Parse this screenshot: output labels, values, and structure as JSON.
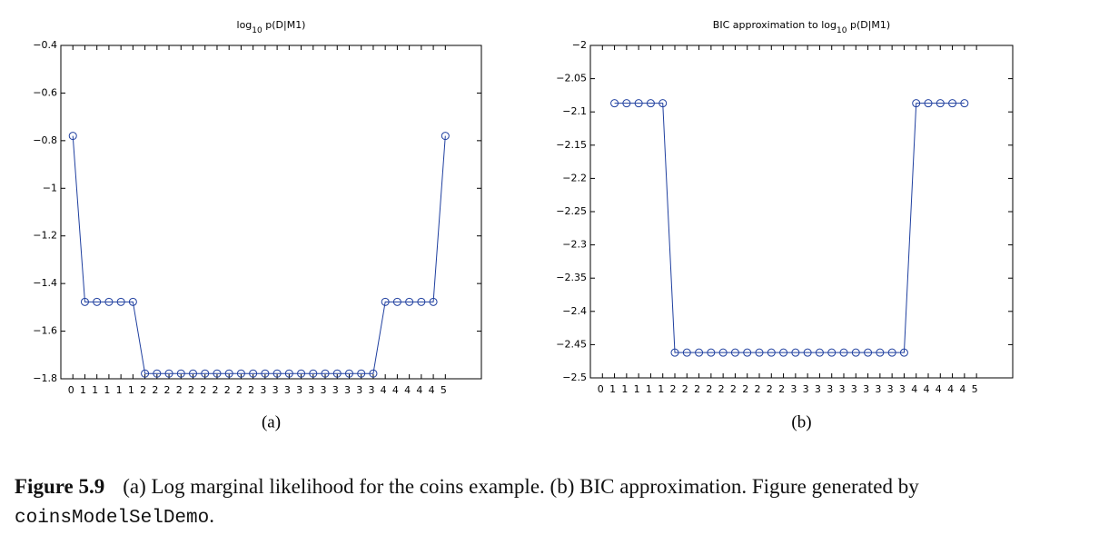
{
  "chart_data": [
    {
      "type": "line",
      "title_parts": [
        "log",
        "10",
        " p(D|M1)"
      ],
      "panel_label": "(a)",
      "categories": [
        "0",
        "1",
        "1",
        "1",
        "1",
        "1",
        "2",
        "2",
        "2",
        "2",
        "2",
        "2",
        "2",
        "2",
        "2",
        "2",
        "3",
        "3",
        "3",
        "3",
        "3",
        "3",
        "3",
        "3",
        "3",
        "3",
        "4",
        "4",
        "4",
        "4",
        "4",
        "5"
      ],
      "values": [
        -0.78,
        -1.477,
        -1.477,
        -1.477,
        -1.477,
        -1.477,
        -1.778,
        -1.778,
        -1.778,
        -1.778,
        -1.778,
        -1.778,
        -1.778,
        -1.778,
        -1.778,
        -1.778,
        -1.778,
        -1.778,
        -1.778,
        -1.778,
        -1.778,
        -1.778,
        -1.778,
        -1.778,
        -1.778,
        -1.778,
        -1.477,
        -1.477,
        -1.477,
        -1.477,
        -1.477,
        -0.78
      ],
      "color": "#1f3f9f",
      "ylim": [
        -1.8,
        -0.4
      ],
      "yticks": [
        {
          "value": -1.8,
          "label": "−1.8"
        },
        {
          "value": -1.6,
          "label": "−1.6"
        },
        {
          "value": -1.4,
          "label": "−1.4"
        },
        {
          "value": -1.2,
          "label": "−1.2"
        },
        {
          "value": -1,
          "label": "−1"
        },
        {
          "value": -0.8,
          "label": "−0.8"
        },
        {
          "value": -0.6,
          "label": "−0.6"
        },
        {
          "value": -0.4,
          "label": "−0.4"
        }
      ],
      "grid": false
    },
    {
      "type": "line",
      "title_parts": [
        "BIC approximation to log",
        "10",
        " p(D|M1)"
      ],
      "panel_label": "(b)",
      "categories": [
        "0",
        "1",
        "1",
        "1",
        "1",
        "1",
        "2",
        "2",
        "2",
        "2",
        "2",
        "2",
        "2",
        "2",
        "2",
        "2",
        "3",
        "3",
        "3",
        "3",
        "3",
        "3",
        "3",
        "3",
        "3",
        "3",
        "4",
        "4",
        "4",
        "4",
        "4",
        "5"
      ],
      "values": [
        null,
        -2.087,
        -2.087,
        -2.087,
        -2.087,
        -2.087,
        -2.462,
        -2.462,
        -2.462,
        -2.462,
        -2.462,
        -2.462,
        -2.462,
        -2.462,
        -2.462,
        -2.462,
        -2.462,
        -2.462,
        -2.462,
        -2.462,
        -2.462,
        -2.462,
        -2.462,
        -2.462,
        -2.462,
        -2.462,
        -2.087,
        -2.087,
        -2.087,
        -2.087,
        -2.087,
        null
      ],
      "color": "#1f3f9f",
      "ylim": [
        -2.5,
        -2
      ],
      "yticks": [
        {
          "value": -2.5,
          "label": "−2.5"
        },
        {
          "value": -2.45,
          "label": "−2.45"
        },
        {
          "value": -2.4,
          "label": "−2.4"
        },
        {
          "value": -2.35,
          "label": "−2.35"
        },
        {
          "value": -2.3,
          "label": "−2.3"
        },
        {
          "value": -2.25,
          "label": "−2.25"
        },
        {
          "value": -2.2,
          "label": "−2.2"
        },
        {
          "value": -2.15,
          "label": "−2.15"
        },
        {
          "value": -2.1,
          "label": "−2.1"
        },
        {
          "value": -2.05,
          "label": "−2.05"
        },
        {
          "value": -2,
          "label": "−2"
        }
      ],
      "grid": false
    }
  ],
  "caption": {
    "label": "Figure 5.9",
    "text": "(a) Log marginal likelihood for the coins example. (b) BIC approximation. Figure generated by",
    "code": "coinsModelSelDemo",
    "end": "."
  }
}
